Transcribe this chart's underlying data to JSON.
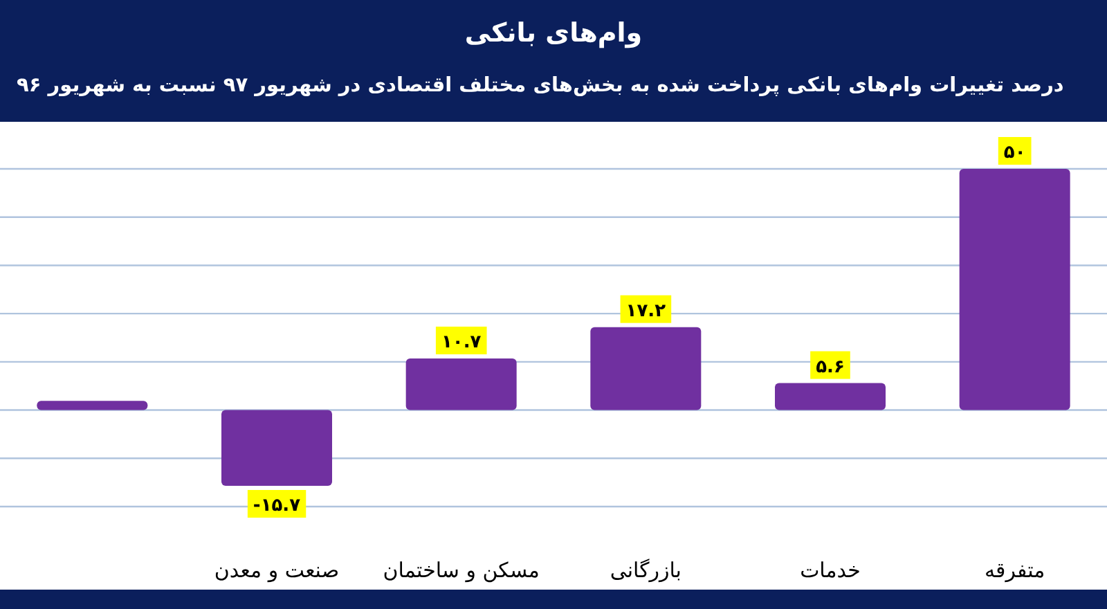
{
  "chart_data": {
    "type": "bar",
    "title": "وام‌های بانکی",
    "subtitle": "درصد تغییرات وام‌های بانکی پرداخت شده به بخش‌های مختلف اقتصادی در شهریور ۹۷ نسبت به شهریور ۹۶",
    "categories": [
      null,
      "صنعت و معدن",
      "مسکن و ساختمان",
      "بازرگانی",
      "خدمات",
      "متفرقه"
    ],
    "values": [
      1.9,
      -15.7,
      10.7,
      17.2,
      5.6,
      50
    ],
    "value_labels": [
      null,
      "-۱۵.۷",
      "۱۰.۷",
      "۱۷.۲",
      "۵.۶",
      "۵۰"
    ],
    "color": "#7030a0",
    "ylim": [
      -20,
      50
    ],
    "yticks": [
      {
        "value": -20,
        "label": null
      },
      {
        "value": -10,
        "label": null
      },
      {
        "value": 0,
        "label": null
      },
      {
        "value": 10,
        "label": null
      },
      {
        "value": 20,
        "label": null
      },
      {
        "value": 30,
        "label": null
      },
      {
        "value": 40,
        "label": null
      },
      {
        "value": 50,
        "label": null
      }
    ],
    "grid": "y",
    "tick_labels": "x"
  }
}
